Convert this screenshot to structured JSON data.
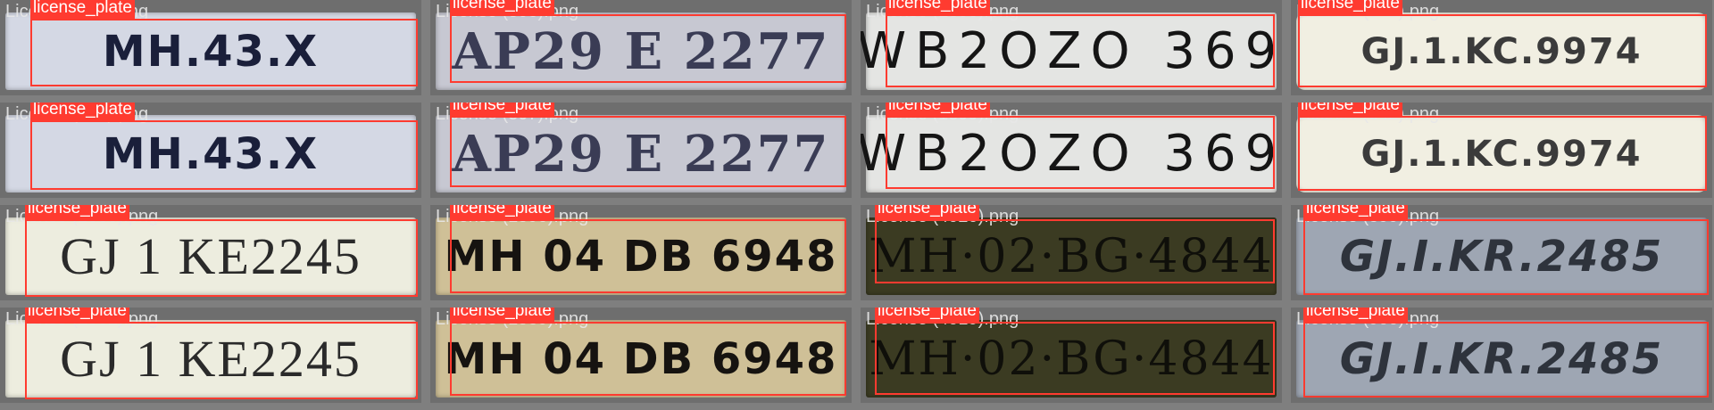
{
  "detection_label": "license_plate",
  "box_color": "#ff3b30",
  "tiles": [
    {
      "filename": "License (463).png",
      "plate": "MH.43.X"
    },
    {
      "filename": "License (308).png",
      "plate": "AP29 E 2277"
    },
    {
      "filename": "License (1890).png",
      "plate": "WB2OZO 369"
    },
    {
      "filename": "License (341).png",
      "plate": "GJ.1.KC.9974"
    },
    {
      "filename": "License (464).png",
      "plate": "MH.43.X"
    },
    {
      "filename": "License (307).png",
      "plate": "AP29 E 2277"
    },
    {
      "filename": "License (1899).png",
      "plate": "WB2OZO 369"
    },
    {
      "filename": "License (342).png",
      "plate": "GJ.1.KC.9974"
    },
    {
      "filename": "License (1580).png",
      "plate": "GJ 1 KE2245"
    },
    {
      "filename": "License (1590).png",
      "plate": "MH 04 DB 6948"
    },
    {
      "filename": "License (4020).png",
      "plate": "MH·02·BG·4844"
    },
    {
      "filename": "License (899).png",
      "plate": "GJ.I.KR.2485"
    },
    {
      "filename": "License (1581).png",
      "plate": "GJ 1 KE2245"
    },
    {
      "filename": "License (1589).png",
      "plate": "MH 04 DB 6948"
    },
    {
      "filename": "License (4019).png",
      "plate": "MH·02·BG·4844"
    },
    {
      "filename": "License (900).png",
      "plate": "GJ.I.KR.2485"
    }
  ]
}
